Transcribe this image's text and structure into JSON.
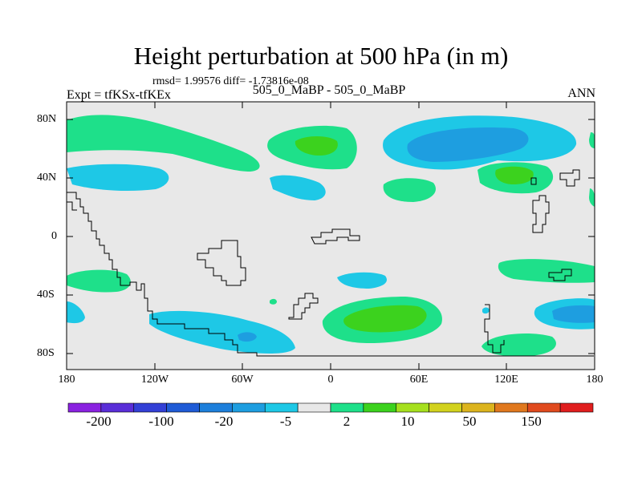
{
  "title": "Height perturbation at 500 hPa (in m)",
  "stats": "rmsd= 1.99576 diff= -1.73816e-08",
  "experiment": "Expt = tfKSx-tfKEx",
  "subtitle": "505_0_MaBP - 505_0_MaBP",
  "season": "ANN",
  "y_labels": [
    "80N",
    "40N",
    "0",
    "40S",
    "80S"
  ],
  "x_labels": [
    "180",
    "120W",
    "60W",
    "0",
    "60E",
    "120E",
    "180"
  ],
  "colorbar": {
    "labels": [
      "-200",
      "-100",
      "-20",
      "-5",
      "2",
      "10",
      "50",
      "150"
    ],
    "colors": [
      "#8a22e0",
      "#5a2ed8",
      "#3340d6",
      "#1f5bd6",
      "#1d7fdb",
      "#1e9ee0",
      "#1ec8e6",
      "#e8e8e8",
      "#1ee08a",
      "#3cd21e",
      "#a6e01e",
      "#d2d21e",
      "#dcb41e",
      "#e0781e",
      "#e04a1e",
      "#e01e1e"
    ]
  },
  "colors": {
    "background_field": "#e8e8e8",
    "green_light": "#1ee08a",
    "green_dark": "#3cd21e",
    "cyan": "#1ec8e6",
    "blue": "#1e9ee0",
    "coast": "#000000"
  }
}
